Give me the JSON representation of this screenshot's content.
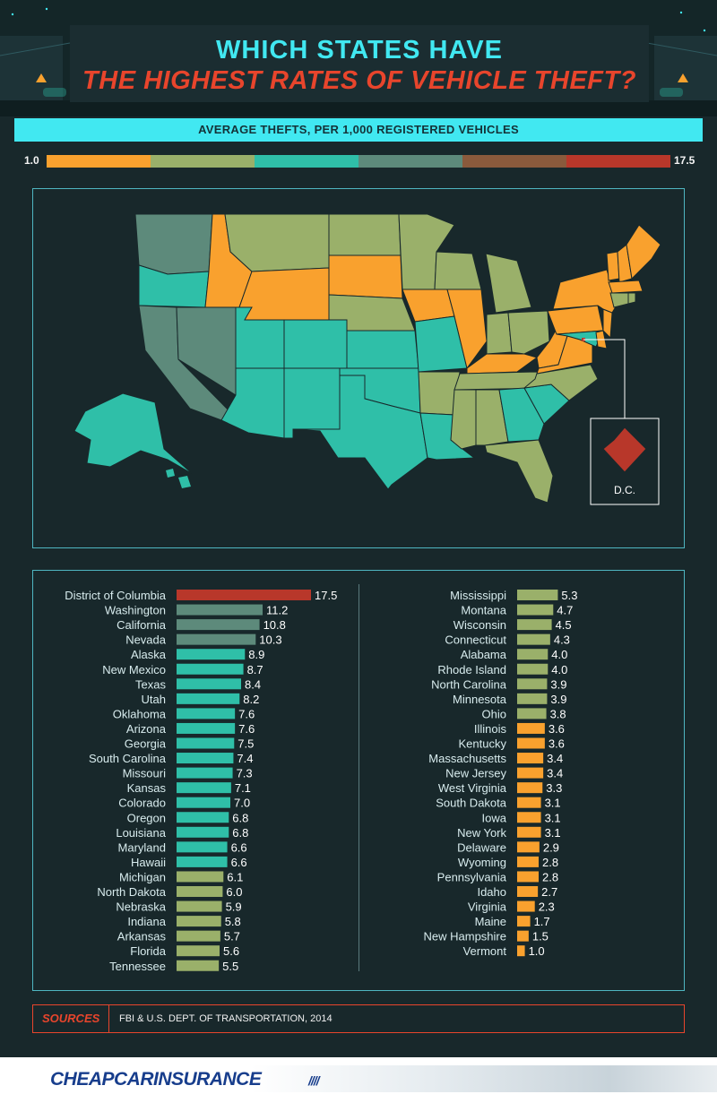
{
  "title": {
    "line1": "WHICH STATES HAVE",
    "line2": "THE HIGHEST RATES OF VEHICLE THEFT?"
  },
  "subtitle": "AVERAGE THEFTS, PER 1,000 REGISTERED VEHICLES",
  "scale": {
    "min_label": "1.0",
    "max_label": "17.5",
    "colors": [
      "#f9a12e",
      "#9ab06a",
      "#2fbfa8",
      "#5d8a7b",
      "#8a5a3c",
      "#b8372a"
    ]
  },
  "map": {
    "dc_label": "D.C.",
    "colors": {
      "orange": "#f9a12e",
      "olive": "#9ab06a",
      "teal": "#2fbfa8",
      "gray": "#5d8a7b",
      "red": "#b8372a"
    }
  },
  "chart_data": {
    "type": "bar",
    "orientation": "horizontal",
    "title": "AVERAGE THEFTS, PER 1,000 REGISTERED VEHICLES",
    "xlim": [
      0,
      17.5
    ],
    "categories": [
      "District of Columbia",
      "Washington",
      "California",
      "Nevada",
      "Alaska",
      "New Mexico",
      "Texas",
      "Utah",
      "Oklahoma",
      "Arizona",
      "Georgia",
      "South Carolina",
      "Missouri",
      "Kansas",
      "Colorado",
      "Oregon",
      "Louisiana",
      "Maryland",
      "Hawaii",
      "Michigan",
      "North Dakota",
      "Nebraska",
      "Indiana",
      "Arkansas",
      "Florida",
      "Tennessee",
      "Mississippi",
      "Montana",
      "Wisconsin",
      "Connecticut",
      "Alabama",
      "Rhode Island",
      "North Carolina",
      "Minnesota",
      "Ohio",
      "Illinois",
      "Kentucky",
      "Massachusetts",
      "New Jersey",
      "West Virginia",
      "South Dakota",
      "Iowa",
      "New York",
      "Delaware",
      "Wyoming",
      "Pennsylvania",
      "Idaho",
      "Virginia",
      "Maine",
      "New Hampshire",
      "Vermont"
    ],
    "values": [
      17.5,
      11.2,
      10.8,
      10.3,
      8.9,
      8.7,
      8.4,
      8.2,
      7.6,
      7.6,
      7.5,
      7.4,
      7.3,
      7.1,
      7.0,
      6.8,
      6.8,
      6.6,
      6.6,
      6.1,
      6.0,
      5.9,
      5.8,
      5.7,
      5.6,
      5.5,
      5.3,
      4.7,
      4.5,
      4.3,
      4.0,
      4.0,
      3.9,
      3.9,
      3.8,
      3.6,
      3.6,
      3.4,
      3.4,
      3.3,
      3.1,
      3.1,
      3.1,
      2.9,
      2.8,
      2.8,
      2.7,
      2.3,
      1.7,
      1.5,
      1.0
    ],
    "value_labels": [
      "17.5",
      "11.2",
      "10.8",
      "10.3",
      "8.9",
      "8.7",
      "8.4",
      "8.2",
      "7.6",
      "7.6",
      "7.5",
      "7.4",
      "7.3",
      "7.1",
      "7.0",
      "6.8",
      "6.8",
      "6.6",
      "6.6",
      "6.1",
      "6.0",
      "5.9",
      "5.8",
      "5.7",
      "5.6",
      "5.5",
      "5.3",
      "4.7",
      "4.5",
      "4.3",
      "4.0",
      "4.0",
      "3.9",
      "3.9",
      "3.8",
      "3.6",
      "3.6",
      "3.4",
      "3.4",
      "3.3",
      "3.1",
      "3.1",
      "3.1",
      "2.9",
      "2.8",
      "2.8",
      "2.7",
      "2.3",
      "1.7",
      "1.5",
      "1.0"
    ],
    "bar_colors": [
      "#b8372a",
      "#5d8a7b",
      "#5d8a7b",
      "#5d8a7b",
      "#2fbfa8",
      "#2fbfa8",
      "#2fbfa8",
      "#2fbfa8",
      "#2fbfa8",
      "#2fbfa8",
      "#2fbfa8",
      "#2fbfa8",
      "#2fbfa8",
      "#2fbfa8",
      "#2fbfa8",
      "#2fbfa8",
      "#2fbfa8",
      "#2fbfa8",
      "#2fbfa8",
      "#9ab06a",
      "#9ab06a",
      "#9ab06a",
      "#9ab06a",
      "#9ab06a",
      "#9ab06a",
      "#9ab06a",
      "#9ab06a",
      "#9ab06a",
      "#9ab06a",
      "#9ab06a",
      "#9ab06a",
      "#9ab06a",
      "#9ab06a",
      "#9ab06a",
      "#9ab06a",
      "#f9a12e",
      "#f9a12e",
      "#f9a12e",
      "#f9a12e",
      "#f9a12e",
      "#f9a12e",
      "#f9a12e",
      "#f9a12e",
      "#f9a12e",
      "#f9a12e",
      "#f9a12e",
      "#f9a12e",
      "#f9a12e",
      "#f9a12e",
      "#f9a12e",
      "#f9a12e"
    ],
    "columns": 2,
    "rows_per_column": [
      26,
      25
    ]
  },
  "sources": {
    "label": "SOURCES",
    "text": "FBI & U.S. DEPT. OF TRANSPORTATION, 2014"
  },
  "footer": {
    "logo": "CHEAPCARINSURANCE"
  }
}
